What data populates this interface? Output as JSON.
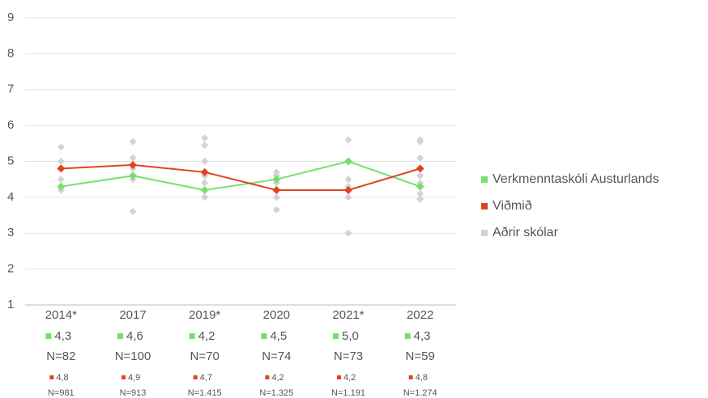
{
  "chart_data": {
    "type": "line",
    "categories": [
      "2014*",
      "2017",
      "2019*",
      "2020",
      "2021*",
      "2022"
    ],
    "ylim": [
      1,
      9
    ],
    "yticks": [
      1,
      2,
      3,
      4,
      5,
      6,
      7,
      8,
      9
    ],
    "grid": true,
    "legend": "right",
    "series": [
      {
        "name": "Verkmenntaskóli Austurlands",
        "color": "#76df6c",
        "values": [
          4.3,
          4.6,
          4.2,
          4.5,
          5.0,
          4.3
        ],
        "value_labels": [
          "4,3",
          "4,6",
          "4,2",
          "4,5",
          "5,0",
          "4,3"
        ],
        "n_labels": [
          "N=82",
          "N=100",
          "N=70",
          "N=74",
          "N=73",
          "N=59"
        ]
      },
      {
        "name": "Viðmið",
        "color": "#e0441e",
        "values": [
          4.8,
          4.9,
          4.7,
          4.2,
          4.2,
          4.8
        ],
        "value_labels": [
          "4,8",
          "4,9",
          "4,7",
          "4,2",
          "4,2",
          "4,8"
        ],
        "n_labels": [
          "N=981",
          "N=913",
          "N=1.415",
          "N=1.325",
          "N=1.191",
          "N=1.274"
        ]
      },
      {
        "name": "Aðrir skólar",
        "color": "#d3d3d3",
        "values": [
          [
            5.4,
            5.0,
            4.8,
            4.5,
            4.2
          ],
          [
            5.55,
            5.1,
            4.8,
            4.5,
            3.6
          ],
          [
            5.65,
            5.45,
            5.0,
            4.6,
            4.4,
            4.2,
            4.0
          ],
          [
            4.7,
            4.6,
            4.4,
            4.2,
            4.0,
            3.65
          ],
          [
            5.6,
            5.0,
            4.5,
            4.3,
            4.0,
            3.0
          ],
          [
            5.6,
            5.55,
            5.1,
            4.8,
            4.6,
            4.4,
            4.1,
            3.95
          ]
        ]
      }
    ]
  }
}
